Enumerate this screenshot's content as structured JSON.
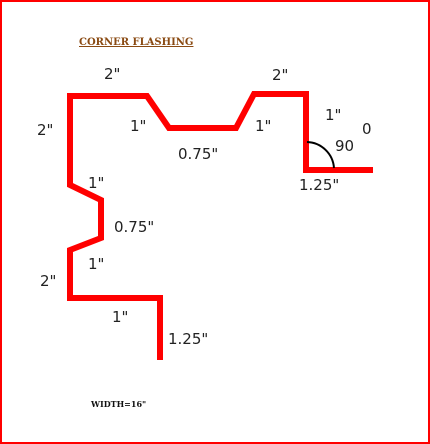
{
  "title": "CORNER  FLASHING",
  "width_note": "WIDTH=16\"",
  "colors": {
    "profile": "#ff0000",
    "border": "#ff0000",
    "angle_arc": "#000000",
    "title": "#8a4a12"
  },
  "dimensions": {
    "top_left_2": "2\"",
    "top_right_2": "2\"",
    "left_upper_2": "2\"",
    "angle_left_1": "1\"",
    "angle_right_1": "1\"",
    "center_075": "0.75\"",
    "right_vertical_1": "1\"",
    "angle_90": "90",
    "degree_mark": "0",
    "right_flange_125": "1.25\"",
    "zig_upper_1": "1\"",
    "zig_075": "0.75\"",
    "zig_lower_1": "1\"",
    "left_lower_2": "2\"",
    "bottom_1": "1\"",
    "bottom_flange_125": "1.25\""
  }
}
